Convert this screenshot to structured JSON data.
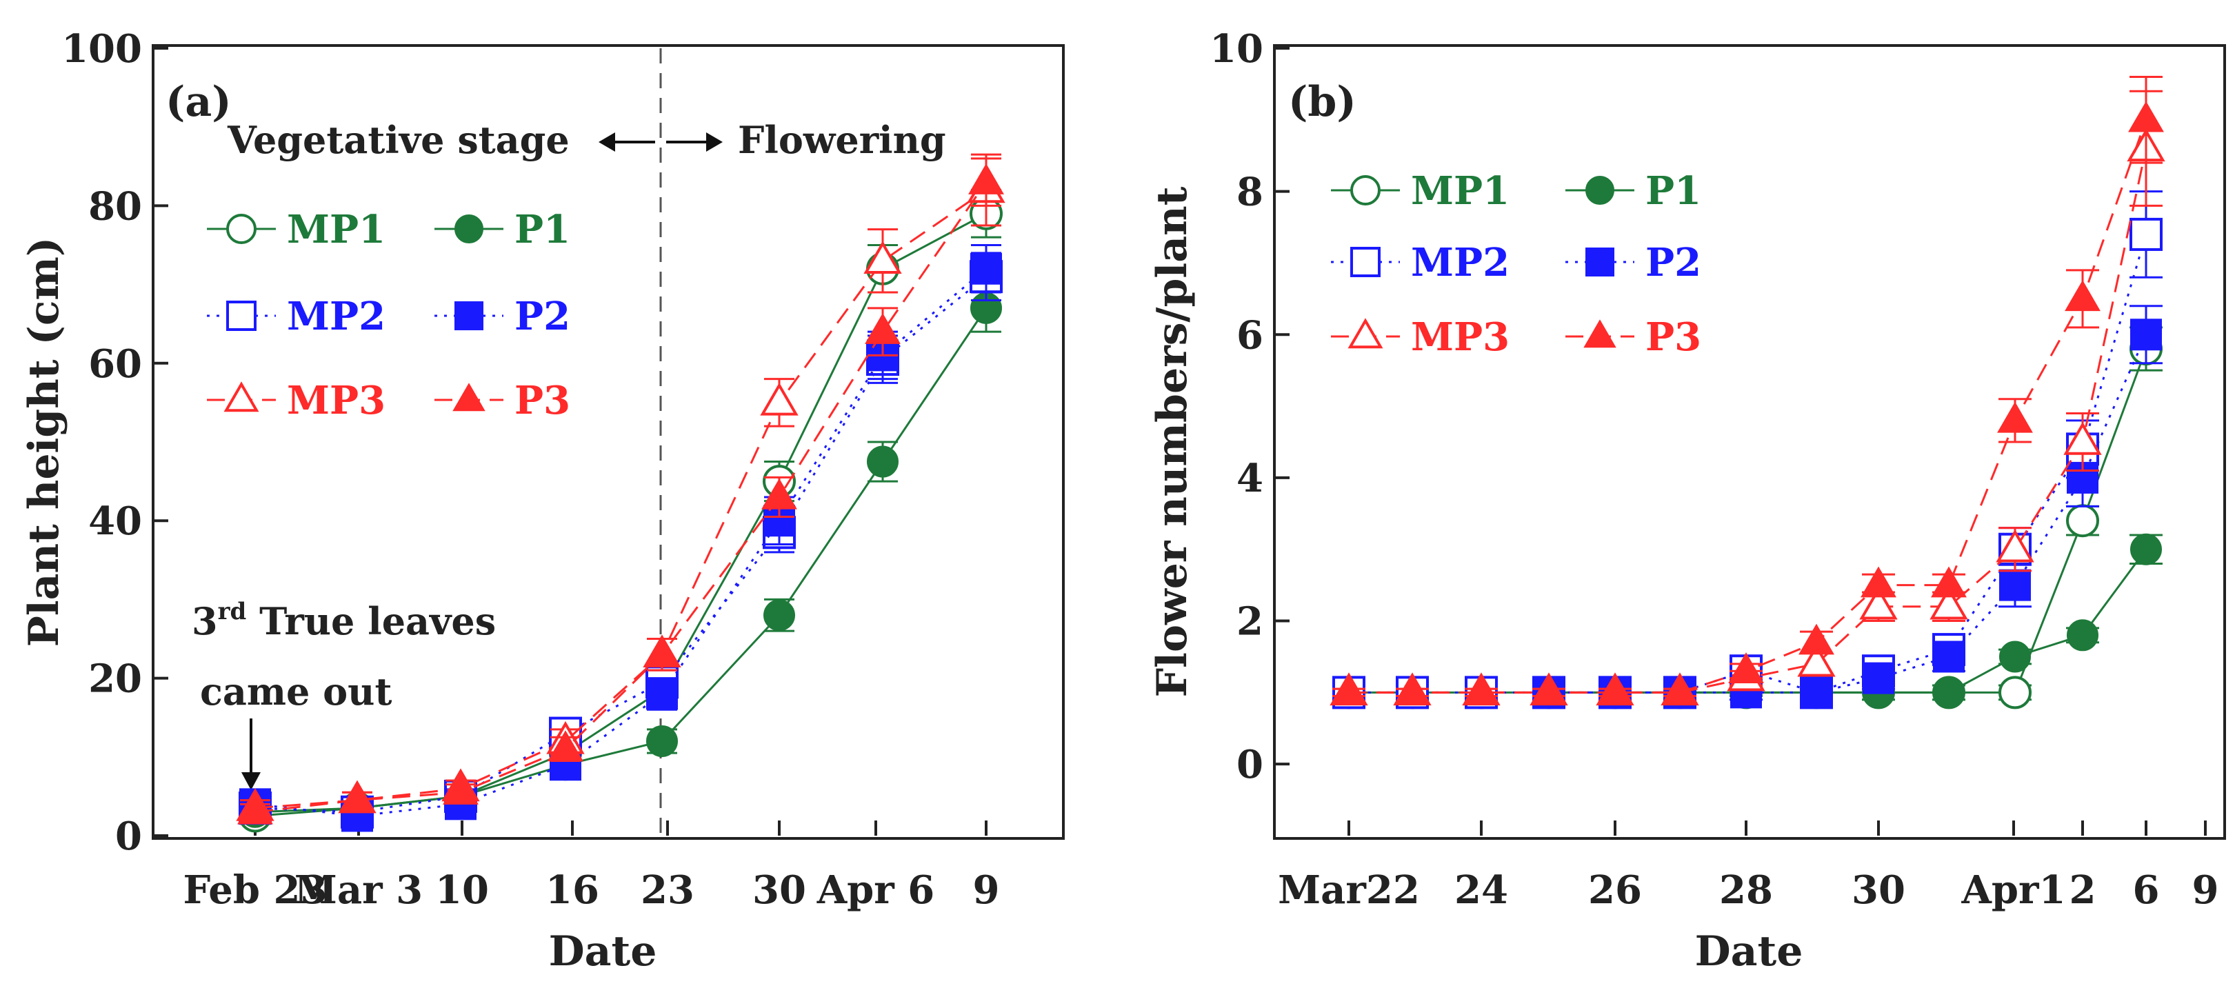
{
  "colors": {
    "MP1": "#1e7a3a",
    "P1": "#1e7a3a",
    "MP2": "#1a1aff",
    "P2": "#1a1aff",
    "MP3": "#ff2a2a",
    "P3": "#ff2a2a",
    "axis": "#222222"
  },
  "chart_data": [
    {
      "type": "line",
      "panel_label": "(a)",
      "xlabel": "Date",
      "ylabel": "Plant height (cm)",
      "ylim": [
        0,
        100
      ],
      "yticks": [
        "0",
        "20",
        "40",
        "60",
        "80",
        "100"
      ],
      "x_tick_labels": [
        "Feb 23",
        "Mar 3",
        "10",
        "16",
        "23",
        "30",
        "Apr 6",
        "9"
      ],
      "annotations": {
        "left_stage": "Vegetative stage",
        "right_stage": "Flowering",
        "leaf_line1_prefix": "3",
        "leaf_line1_sup": "rd",
        "leaf_line1_suffix": " True leaves",
        "leaf_line2": "came out"
      },
      "series": [
        {
          "name": "MP1",
          "marker": "circle-open",
          "dash": "solid",
          "values": [
            2.5,
            3.5,
            5.0,
            10.5,
            18.5,
            45.0,
            72.0,
            79.0
          ],
          "errors": [
            1.0,
            1.0,
            1.0,
            1.5,
            2.0,
            2.5,
            3.0,
            3.0
          ]
        },
        {
          "name": "P1",
          "marker": "circle-filled",
          "dash": "solid",
          "values": [
            3.0,
            3.5,
            5.0,
            9.0,
            12.0,
            28.0,
            47.5,
            67.0
          ],
          "errors": [
            1.0,
            1.0,
            1.0,
            1.5,
            1.5,
            2.0,
            2.5,
            3.0
          ]
        },
        {
          "name": "MP2",
          "marker": "square-open",
          "dash": "dot",
          "values": [
            3.5,
            3.0,
            5.0,
            13.0,
            19.5,
            38.5,
            60.5,
            71.0
          ],
          "errors": [
            1.0,
            1.0,
            1.0,
            1.5,
            2.0,
            2.5,
            3.0,
            3.0
          ]
        },
        {
          "name": "P2",
          "marker": "square-filled",
          "dash": "dot",
          "values": [
            4.0,
            2.5,
            4.0,
            9.0,
            18.0,
            40.0,
            61.0,
            72.0
          ],
          "errors": [
            1.0,
            1.0,
            1.0,
            1.5,
            2.0,
            3.0,
            3.0,
            3.0
          ]
        },
        {
          "name": "MP3",
          "marker": "triangle-open",
          "dash": "dash",
          "values": [
            3.5,
            4.5,
            6.0,
            12.0,
            23.0,
            55.0,
            73.0,
            82.0
          ],
          "errors": [
            1.0,
            1.0,
            1.0,
            1.5,
            2.0,
            3.0,
            4.0,
            4.5
          ]
        },
        {
          "name": "P3",
          "marker": "triangle-filled",
          "dash": "dash",
          "values": [
            3.0,
            4.5,
            5.5,
            11.0,
            23.0,
            43.0,
            64.0,
            83.0
          ],
          "errors": [
            1.0,
            1.0,
            1.0,
            1.5,
            2.0,
            2.5,
            3.0,
            3.0
          ]
        }
      ]
    },
    {
      "type": "line",
      "panel_label": "(b)",
      "xlabel": "Date",
      "ylabel": "Flower numbers/plant",
      "ylim": [
        -1,
        10
      ],
      "yticks": [
        "0",
        "2",
        "4",
        "6",
        "8",
        "10"
      ],
      "x_tick_labels": [
        "Mar22",
        "24",
        "26",
        "28",
        "30",
        "Apr1",
        "2",
        "6",
        "9"
      ],
      "series": [
        {
          "name": "MP1",
          "marker": "circle-open",
          "dash": "solid",
          "values": [
            1,
            1,
            1,
            1,
            1,
            1,
            1,
            1,
            1,
            1,
            1,
            3.4,
            5.8
          ],
          "errors": [
            0.05,
            0.05,
            0.05,
            0.05,
            0.05,
            0.05,
            0.1,
            0.1,
            0.1,
            0.1,
            0.1,
            0.2,
            0.3
          ]
        },
        {
          "name": "P1",
          "marker": "circle-filled",
          "dash": "solid",
          "values": [
            null,
            null,
            null,
            1,
            1,
            1,
            1,
            1,
            1,
            1,
            1.5,
            1.8,
            3.0
          ],
          "errors": [
            0,
            0,
            0,
            0.05,
            0.05,
            0.05,
            0.05,
            0.05,
            0.1,
            0.1,
            0.1,
            0.1,
            0.2
          ]
        },
        {
          "name": "MP2",
          "marker": "square-open",
          "dash": "dot",
          "values": [
            1,
            1,
            1,
            1,
            1,
            1,
            1.3,
            1,
            1.3,
            1.6,
            3.0,
            4.4,
            7.4
          ],
          "errors": [
            0.05,
            0.05,
            0.1,
            0.1,
            0.1,
            0.1,
            0.15,
            0.1,
            0.15,
            0.2,
            0.3,
            0.4,
            0.6
          ]
        },
        {
          "name": "P2",
          "marker": "square-filled",
          "dash": "dot",
          "values": [
            null,
            null,
            null,
            1,
            1,
            1,
            1,
            1,
            1.2,
            1.5,
            2.5,
            4.0,
            6.0
          ],
          "errors": [
            0,
            0,
            0,
            0.05,
            0.05,
            0.05,
            0.1,
            0.1,
            0.15,
            0.2,
            0.3,
            0.4,
            0.4
          ]
        },
        {
          "name": "MP3",
          "marker": "triangle-open",
          "dash": "dash",
          "values": [
            1,
            1,
            1,
            1,
            1,
            1,
            1.2,
            1.4,
            2.2,
            2.2,
            3.0,
            4.5,
            8.6
          ],
          "errors": [
            0.05,
            0.05,
            0.05,
            0.05,
            0.05,
            0.05,
            0.1,
            0.15,
            0.2,
            0.2,
            0.3,
            0.4,
            0.8
          ]
        },
        {
          "name": "P3",
          "marker": "triangle-filled",
          "dash": "dash",
          "values": [
            1,
            1,
            1,
            1,
            1,
            1,
            1.3,
            1.7,
            2.5,
            2.5,
            4.8,
            6.5,
            9.0
          ],
          "errors": [
            0.05,
            0.05,
            0.05,
            0.05,
            0.05,
            0.05,
            0.1,
            0.15,
            0.15,
            0.15,
            0.3,
            0.4,
            0.6
          ]
        }
      ]
    }
  ]
}
